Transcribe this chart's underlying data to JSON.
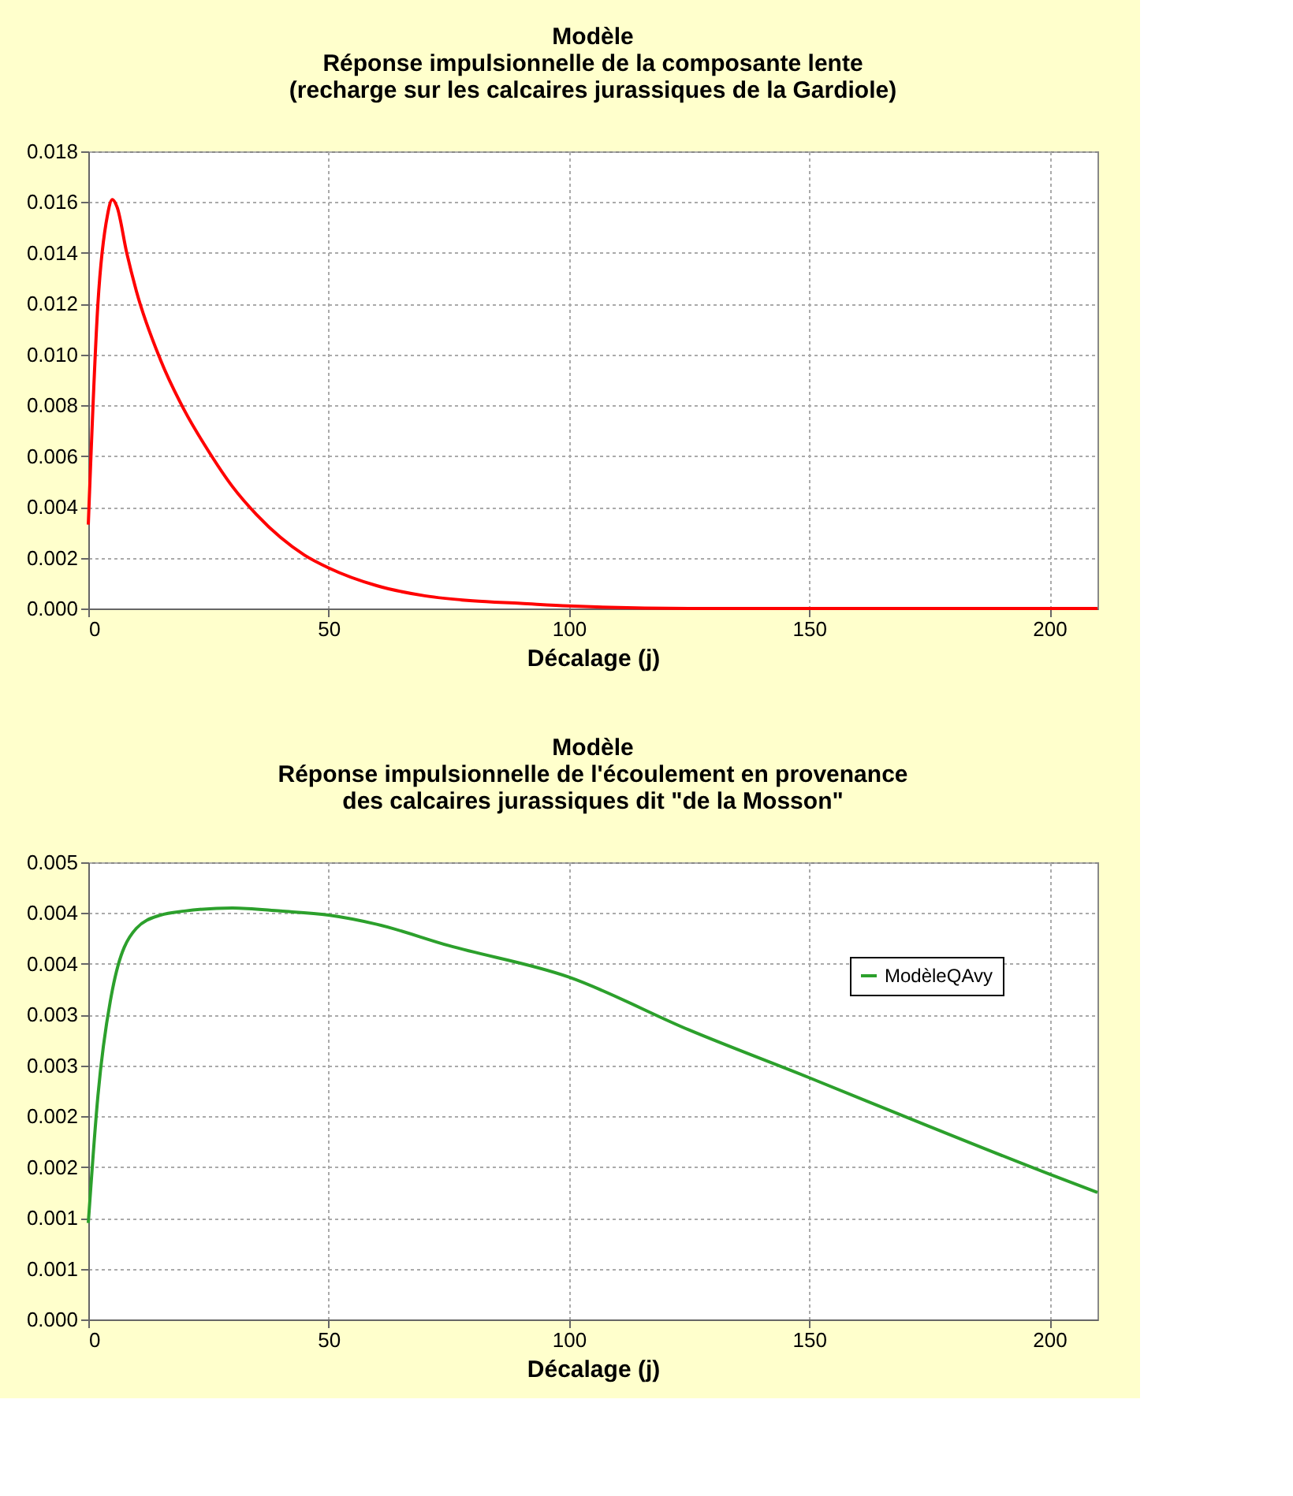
{
  "chart_data": [
    {
      "type": "line",
      "title": "Modèle\nRéponse impulsionnelle de la composante lente\n(recharge sur les calcaires  jurassiques de la Gardiole)",
      "xlabel": "Décalage  (j)",
      "x": [
        0,
        2,
        4,
        5,
        6,
        8,
        10,
        15,
        20,
        25,
        30,
        35,
        40,
        45,
        50,
        60,
        70,
        80,
        90,
        100,
        125,
        150,
        210
      ],
      "series": [
        {
          "color": "#ff0000",
          "values": [
            0.0033,
            0.012,
            0.0155,
            0.0161,
            0.0158,
            0.014,
            0.0125,
            0.0098,
            0.0078,
            0.0062,
            0.0048,
            0.0037,
            0.0028,
            0.0021,
            0.0016,
            0.0009,
            0.0005,
            0.0003,
            0.0002,
            0.0001,
            0,
            0,
            0
          ]
        }
      ],
      "xlim": [
        0,
        210
      ],
      "xticks": [
        0,
        50,
        100,
        150,
        200
      ],
      "ylim": [
        0,
        0.018
      ],
      "yticks": [
        {
          "value": 0,
          "label": "0.000"
        },
        {
          "value": 0.002,
          "label": "0.002"
        },
        {
          "value": 0.004,
          "label": "0.004"
        },
        {
          "value": 0.006,
          "label": "0.006"
        },
        {
          "value": 0.008,
          "label": "0.008"
        },
        {
          "value": 0.01,
          "label": "0.010"
        },
        {
          "value": 0.012,
          "label": "0.012"
        },
        {
          "value": 0.014,
          "label": "0.014"
        },
        {
          "value": 0.016,
          "label": "0.016"
        },
        {
          "value": 0.018,
          "label": "0.018"
        }
      ],
      "grid": true,
      "legend": false
    },
    {
      "type": "line",
      "title": "Modèle\nRéponse impulsionnelle de l'écoulement en provenance\ndes calcaires jurassiques dit \"de la Mosson\"",
      "xlabel": "Décalage (j)",
      "x": [
        0,
        2,
        5,
        10,
        15,
        20,
        30,
        40,
        50,
        60,
        75,
        100,
        125,
        150,
        175,
        200,
        210
      ],
      "series": [
        {
          "name": "ModèleQAvy",
          "color": "#2ca02c",
          "values": [
            0.00095,
            0.0022,
            0.00324,
            0.00385,
            0.00398,
            0.00402,
            0.00405,
            0.00402,
            0.00398,
            0.00389,
            0.00368,
            0.00337,
            0.00285,
            0.00238,
            0.0019,
            0.00143,
            0.00125
          ]
        }
      ],
      "xlim": [
        0,
        210
      ],
      "xticks": [
        0,
        50,
        100,
        150,
        200
      ],
      "ylim": [
        0,
        0.0045
      ],
      "yticks": [
        {
          "value": 0,
          "label": "0.000"
        },
        {
          "value": 0.0005,
          "label": "0.001"
        },
        {
          "value": 0.001,
          "label": "0.001"
        },
        {
          "value": 0.0015,
          "label": "0.002"
        },
        {
          "value": 0.002,
          "label": "0.002"
        },
        {
          "value": 0.0025,
          "label": "0.003"
        },
        {
          "value": 0.003,
          "label": "0.003"
        },
        {
          "value": 0.0035,
          "label": "0.004"
        },
        {
          "value": 0.004,
          "label": "0.004"
        },
        {
          "value": 0.0045,
          "label": "0.005"
        }
      ],
      "grid": true,
      "legend": "top right"
    }
  ]
}
